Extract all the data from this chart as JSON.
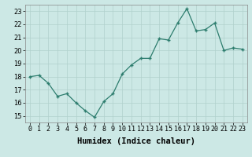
{
  "x": [
    0,
    1,
    2,
    3,
    4,
    5,
    6,
    7,
    8,
    9,
    10,
    11,
    12,
    13,
    14,
    15,
    16,
    17,
    18,
    19,
    20,
    21,
    22,
    23
  ],
  "y": [
    18.0,
    18.1,
    17.5,
    16.5,
    16.7,
    16.0,
    15.4,
    14.9,
    16.1,
    16.7,
    18.2,
    18.9,
    19.4,
    19.4,
    20.9,
    20.8,
    22.1,
    23.2,
    21.5,
    21.6,
    22.1,
    20.0,
    20.2,
    20.1
  ],
  "xlabel": "Humidex (Indice chaleur)",
  "xlim": [
    -0.5,
    23.5
  ],
  "ylim": [
    14.5,
    23.5
  ],
  "yticks": [
    15,
    16,
    17,
    18,
    19,
    20,
    21,
    22,
    23
  ],
  "xtick_labels": [
    "0",
    "1",
    "2",
    "3",
    "4",
    "5",
    "6",
    "7",
    "8",
    "9",
    "10",
    "11",
    "12",
    "13",
    "14",
    "15",
    "16",
    "17",
    "18",
    "19",
    "20",
    "21",
    "22",
    "23"
  ],
  "line_color": "#2d7d6e",
  "marker_color": "#2d7d6e",
  "bg_color": "#cce8e5",
  "grid_color": "#b0d0cc",
  "label_fontsize": 7.5,
  "tick_fontsize": 6.0
}
